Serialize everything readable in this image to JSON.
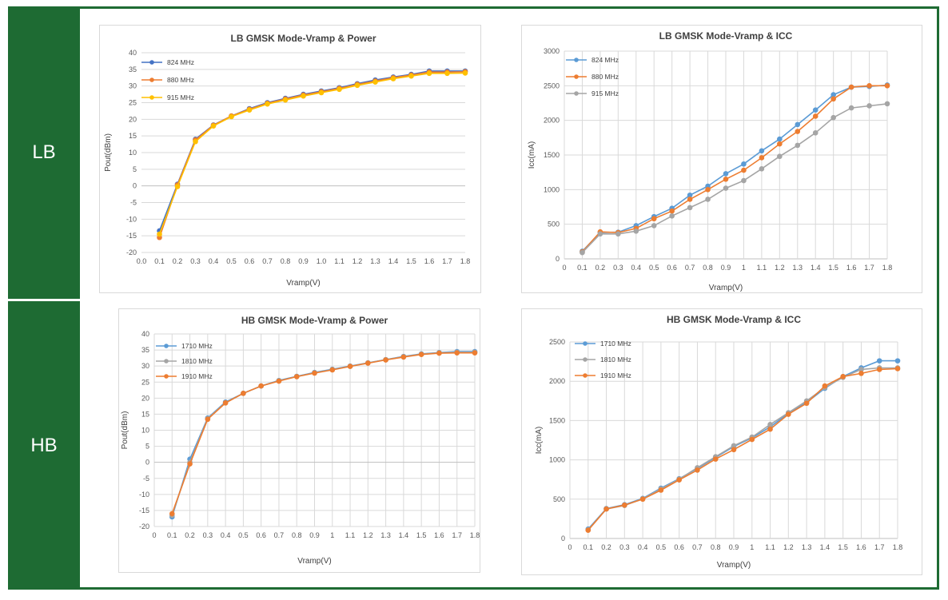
{
  "bands": {
    "lb": "LB",
    "hb": "HB"
  },
  "chart_data": [
    {
      "id": "lb-power",
      "type": "line",
      "title": "LB GMSK Mode-Vramp & Power",
      "xlabel": "Vramp(V)",
      "ylabel": "Pout(dBm)",
      "xlim": [
        0.0,
        1.8
      ],
      "xticks": [
        "0.0",
        "0.1",
        "0.2",
        "0.3",
        "0.4",
        "0.5",
        "0.6",
        "0.7",
        "0.8",
        "0.9",
        "1.0",
        "1.1",
        "1.2",
        "1.3",
        "1.4",
        "1.5",
        "1.6",
        "1.7",
        "1.8"
      ],
      "ylim": [
        -20,
        40
      ],
      "ystep": 5,
      "yticks": [
        "-20",
        "-15",
        "-10",
        "-5",
        "0",
        "5",
        "10",
        "15",
        "20",
        "25",
        "30",
        "35",
        "40"
      ],
      "grid": "horizontal",
      "legend": "top-left",
      "x": [
        0.1,
        0.2,
        0.3,
        0.4,
        0.5,
        0.6,
        0.7,
        0.8,
        0.9,
        1.0,
        1.1,
        1.2,
        1.3,
        1.4,
        1.5,
        1.6,
        1.7,
        1.8
      ],
      "series": [
        {
          "name": "824 MHz",
          "color": "#4472c4",
          "values": [
            -13.5,
            0.5,
            14,
            18.3,
            21,
            23.2,
            25,
            26.3,
            27.5,
            28.5,
            29.5,
            30.7,
            31.8,
            32.7,
            33.5,
            34.5,
            34.5,
            34.5
          ]
        },
        {
          "name": "880 MHz",
          "color": "#ed7d31",
          "values": [
            -15.5,
            0.3,
            13.8,
            18.2,
            21,
            23,
            24.8,
            26.1,
            27.3,
            28.3,
            29.3,
            30.5,
            31.5,
            32.5,
            33.3,
            34.2,
            34.2,
            34.3
          ]
        },
        {
          "name": "915 MHz",
          "color": "#ffc000",
          "values": [
            -14.5,
            -0.2,
            13.3,
            18,
            20.8,
            22.8,
            24.6,
            25.8,
            27,
            28,
            29,
            30.2,
            31.2,
            32.2,
            33,
            33.8,
            33.8,
            33.9
          ]
        }
      ]
    },
    {
      "id": "lb-icc",
      "type": "line",
      "title": "LB GMSK Mode-Vramp & ICC",
      "xlabel": "Vramp(V)",
      "ylabel": "Icc(mA)",
      "xlim": [
        0,
        1.8
      ],
      "xticks": [
        "0",
        "0.1",
        "0.2",
        "0.3",
        "0.4",
        "0.5",
        "0.6",
        "0.7",
        "0.8",
        "0.9",
        "1",
        "1.1",
        "1.2",
        "1.3",
        "1.4",
        "1.5",
        "1.6",
        "1.7",
        "1.8"
      ],
      "ylim": [
        0,
        3000
      ],
      "ystep": 500,
      "yticks": [
        "0",
        "500",
        "1000",
        "1500",
        "2000",
        "2500",
        "3000"
      ],
      "grid": "both",
      "legend": "top-left",
      "x": [
        0.1,
        0.2,
        0.3,
        0.4,
        0.5,
        0.6,
        0.7,
        0.8,
        0.9,
        1.0,
        1.1,
        1.2,
        1.3,
        1.4,
        1.5,
        1.6,
        1.7,
        1.8
      ],
      "series": [
        {
          "name": "824 MHz",
          "color": "#5b9bd5",
          "values": [
            110,
            380,
            385,
            480,
            610,
            730,
            920,
            1050,
            1230,
            1370,
            1560,
            1730,
            1940,
            2150,
            2370,
            2480,
            2490,
            2510
          ]
        },
        {
          "name": "880 MHz",
          "color": "#ed7d31",
          "values": [
            100,
            390,
            380,
            440,
            580,
            690,
            860,
            1000,
            1150,
            1280,
            1460,
            1660,
            1840,
            2060,
            2310,
            2480,
            2500,
            2500
          ]
        },
        {
          "name": "915 MHz",
          "color": "#a5a5a5",
          "values": [
            90,
            360,
            360,
            400,
            480,
            620,
            740,
            860,
            1020,
            1130,
            1300,
            1480,
            1640,
            1820,
            2040,
            2180,
            2210,
            2240
          ]
        }
      ]
    },
    {
      "id": "hb-power",
      "type": "line",
      "title": "HB GMSK Mode-Vramp & Power",
      "xlabel": "Vramp(V)",
      "ylabel": "Pout(dBm)",
      "xlim": [
        0,
        1.8
      ],
      "xticks": [
        "0",
        "0.1",
        "0.2",
        "0.3",
        "0.4",
        "0.5",
        "0.6",
        "0.7",
        "0.8",
        "0.9",
        "1",
        "1.1",
        "1.2",
        "1.3",
        "1.4",
        "1.5",
        "1.6",
        "1.7",
        "1.8"
      ],
      "ylim": [
        -20,
        40
      ],
      "ystep": 5,
      "yticks": [
        "-20",
        "-15",
        "-10",
        "-5",
        "0",
        "5",
        "10",
        "15",
        "20",
        "25",
        "30",
        "35",
        "40"
      ],
      "grid": "both",
      "legend": "top-left",
      "x": [
        0.1,
        0.2,
        0.3,
        0.4,
        0.5,
        0.6,
        0.7,
        0.8,
        0.9,
        1.0,
        1.1,
        1.2,
        1.3,
        1.4,
        1.5,
        1.6,
        1.7,
        1.8
      ],
      "series": [
        {
          "name": "1710 MHz",
          "color": "#5b9bd5",
          "values": [
            -17,
            1,
            13.8,
            18.8,
            21.5,
            23.8,
            25.5,
            26.8,
            28,
            29,
            30,
            31,
            32,
            33,
            33.8,
            34.2,
            34.5,
            34.5
          ]
        },
        {
          "name": "1810 MHz",
          "color": "#a5a5a5",
          "values": [
            -16.5,
            0,
            13.6,
            18.6,
            21.5,
            23.8,
            25.4,
            26.7,
            27.9,
            28.9,
            29.9,
            31,
            32,
            32.9,
            33.7,
            34.1,
            34.3,
            34.3
          ]
        },
        {
          "name": "1910 MHz",
          "color": "#ed7d31",
          "values": [
            -16,
            -0.5,
            13.4,
            18.5,
            21.5,
            23.8,
            25.3,
            26.7,
            27.8,
            28.8,
            29.9,
            30.9,
            31.9,
            32.8,
            33.6,
            34,
            34.1,
            34.1
          ]
        }
      ]
    },
    {
      "id": "hb-icc",
      "type": "line",
      "title": "HB GMSK Mode-Vramp & ICC",
      "xlabel": "Vramp(V)",
      "ylabel": "Icc(mA)",
      "xlim": [
        0,
        1.8
      ],
      "xticks": [
        "0",
        "0.1",
        "0.2",
        "0.3",
        "0.4",
        "0.5",
        "0.6",
        "0.7",
        "0.8",
        "0.9",
        "1",
        "1.1",
        "1.2",
        "1.3",
        "1.4",
        "1.5",
        "1.6",
        "1.7",
        "1.8"
      ],
      "ylim": [
        0,
        2500
      ],
      "ystep": 500,
      "yticks": [
        "0",
        "500",
        "1000",
        "1500",
        "2000",
        "2500"
      ],
      "grid": "both",
      "legend": "top-left",
      "x": [
        0.1,
        0.2,
        0.3,
        0.4,
        0.5,
        0.6,
        0.7,
        0.8,
        0.9,
        1.0,
        1.1,
        1.2,
        1.3,
        1.4,
        1.5,
        1.6,
        1.7,
        1.8
      ],
      "series": [
        {
          "name": "1710 MHz",
          "color": "#5b9bd5",
          "values": [
            120,
            380,
            430,
            510,
            640,
            760,
            890,
            1030,
            1170,
            1280,
            1420,
            1590,
            1730,
            1910,
            2060,
            2170,
            2260,
            2260
          ]
        },
        {
          "name": "1810 MHz",
          "color": "#a5a5a5",
          "values": [
            110,
            375,
            420,
            505,
            630,
            755,
            900,
            1040,
            1180,
            1290,
            1450,
            1600,
            1750,
            1920,
            2050,
            2150,
            2170,
            2170
          ]
        },
        {
          "name": "1910 MHz",
          "color": "#ed7d31",
          "values": [
            105,
            375,
            425,
            500,
            615,
            745,
            870,
            1010,
            1130,
            1260,
            1390,
            1580,
            1720,
            1940,
            2060,
            2100,
            2150,
            2160
          ]
        }
      ]
    }
  ]
}
